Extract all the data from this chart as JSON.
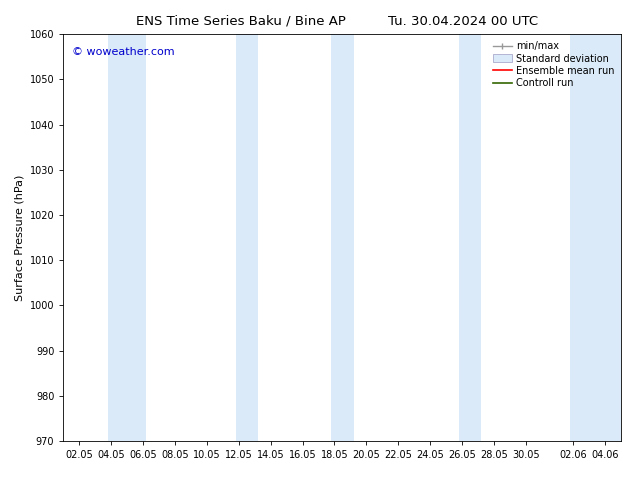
{
  "title_left": "ENS Time Series Baku / Bine AP",
  "title_right": "Tu. 30.04.2024 00 UTC",
  "ylabel": "Surface Pressure (hPa)",
  "ylim": [
    970,
    1060
  ],
  "yticks": [
    970,
    980,
    990,
    1000,
    1010,
    1020,
    1030,
    1040,
    1050,
    1060
  ],
  "xtick_labels": [
    "02.05",
    "04.05",
    "06.05",
    "08.05",
    "10.05",
    "12.05",
    "14.05",
    "16.05",
    "18.05",
    "20.05",
    "22.05",
    "24.05",
    "26.05",
    "28.05",
    "30.05",
    "02.06",
    "04.06"
  ],
  "watermark": "© woweather.com",
  "watermark_color": "#0000cc",
  "band_color": "#daeaf8",
  "band_alpha": 1.0,
  "bg_color": "#ffffff",
  "legend_labels": [
    "min/max",
    "Standard deviation",
    "Ensemble mean run",
    "Controll run"
  ],
  "title_fontsize": 9.5,
  "axis_fontsize": 8,
  "tick_fontsize": 7,
  "legend_fontsize": 7,
  "watermark_fontsize": 8
}
